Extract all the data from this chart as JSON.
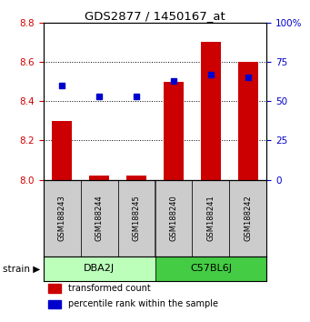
{
  "title": "GDS2877 / 1450167_at",
  "samples": [
    "GSM188243",
    "GSM188244",
    "GSM188245",
    "GSM188240",
    "GSM188241",
    "GSM188242"
  ],
  "red_values": [
    8.3,
    8.02,
    8.02,
    8.5,
    8.7,
    8.6
  ],
  "blue_values_pct": [
    60,
    53,
    53,
    63,
    67,
    65
  ],
  "red_color": "#cc0000",
  "blue_color": "#0000cc",
  "ylim_left": [
    8.0,
    8.8
  ],
  "ylim_right": [
    0,
    100
  ],
  "yticks_left": [
    8.0,
    8.2,
    8.4,
    8.6,
    8.8
  ],
  "yticks_right": [
    0,
    25,
    50,
    75,
    100
  ],
  "groups": [
    {
      "label": "DBA2J",
      "samples": [
        0,
        1,
        2
      ],
      "color": "#bbffbb"
    },
    {
      "label": "C57BL6J",
      "samples": [
        3,
        4,
        5
      ],
      "color": "#44cc44"
    }
  ],
  "bar_width": 0.55,
  "legend_items": [
    {
      "color": "#cc0000",
      "label": "transformed count"
    },
    {
      "color": "#0000cc",
      "label": "percentile rank within the sample"
    }
  ],
  "fig_width": 3.41,
  "fig_height": 3.54,
  "dpi": 100
}
